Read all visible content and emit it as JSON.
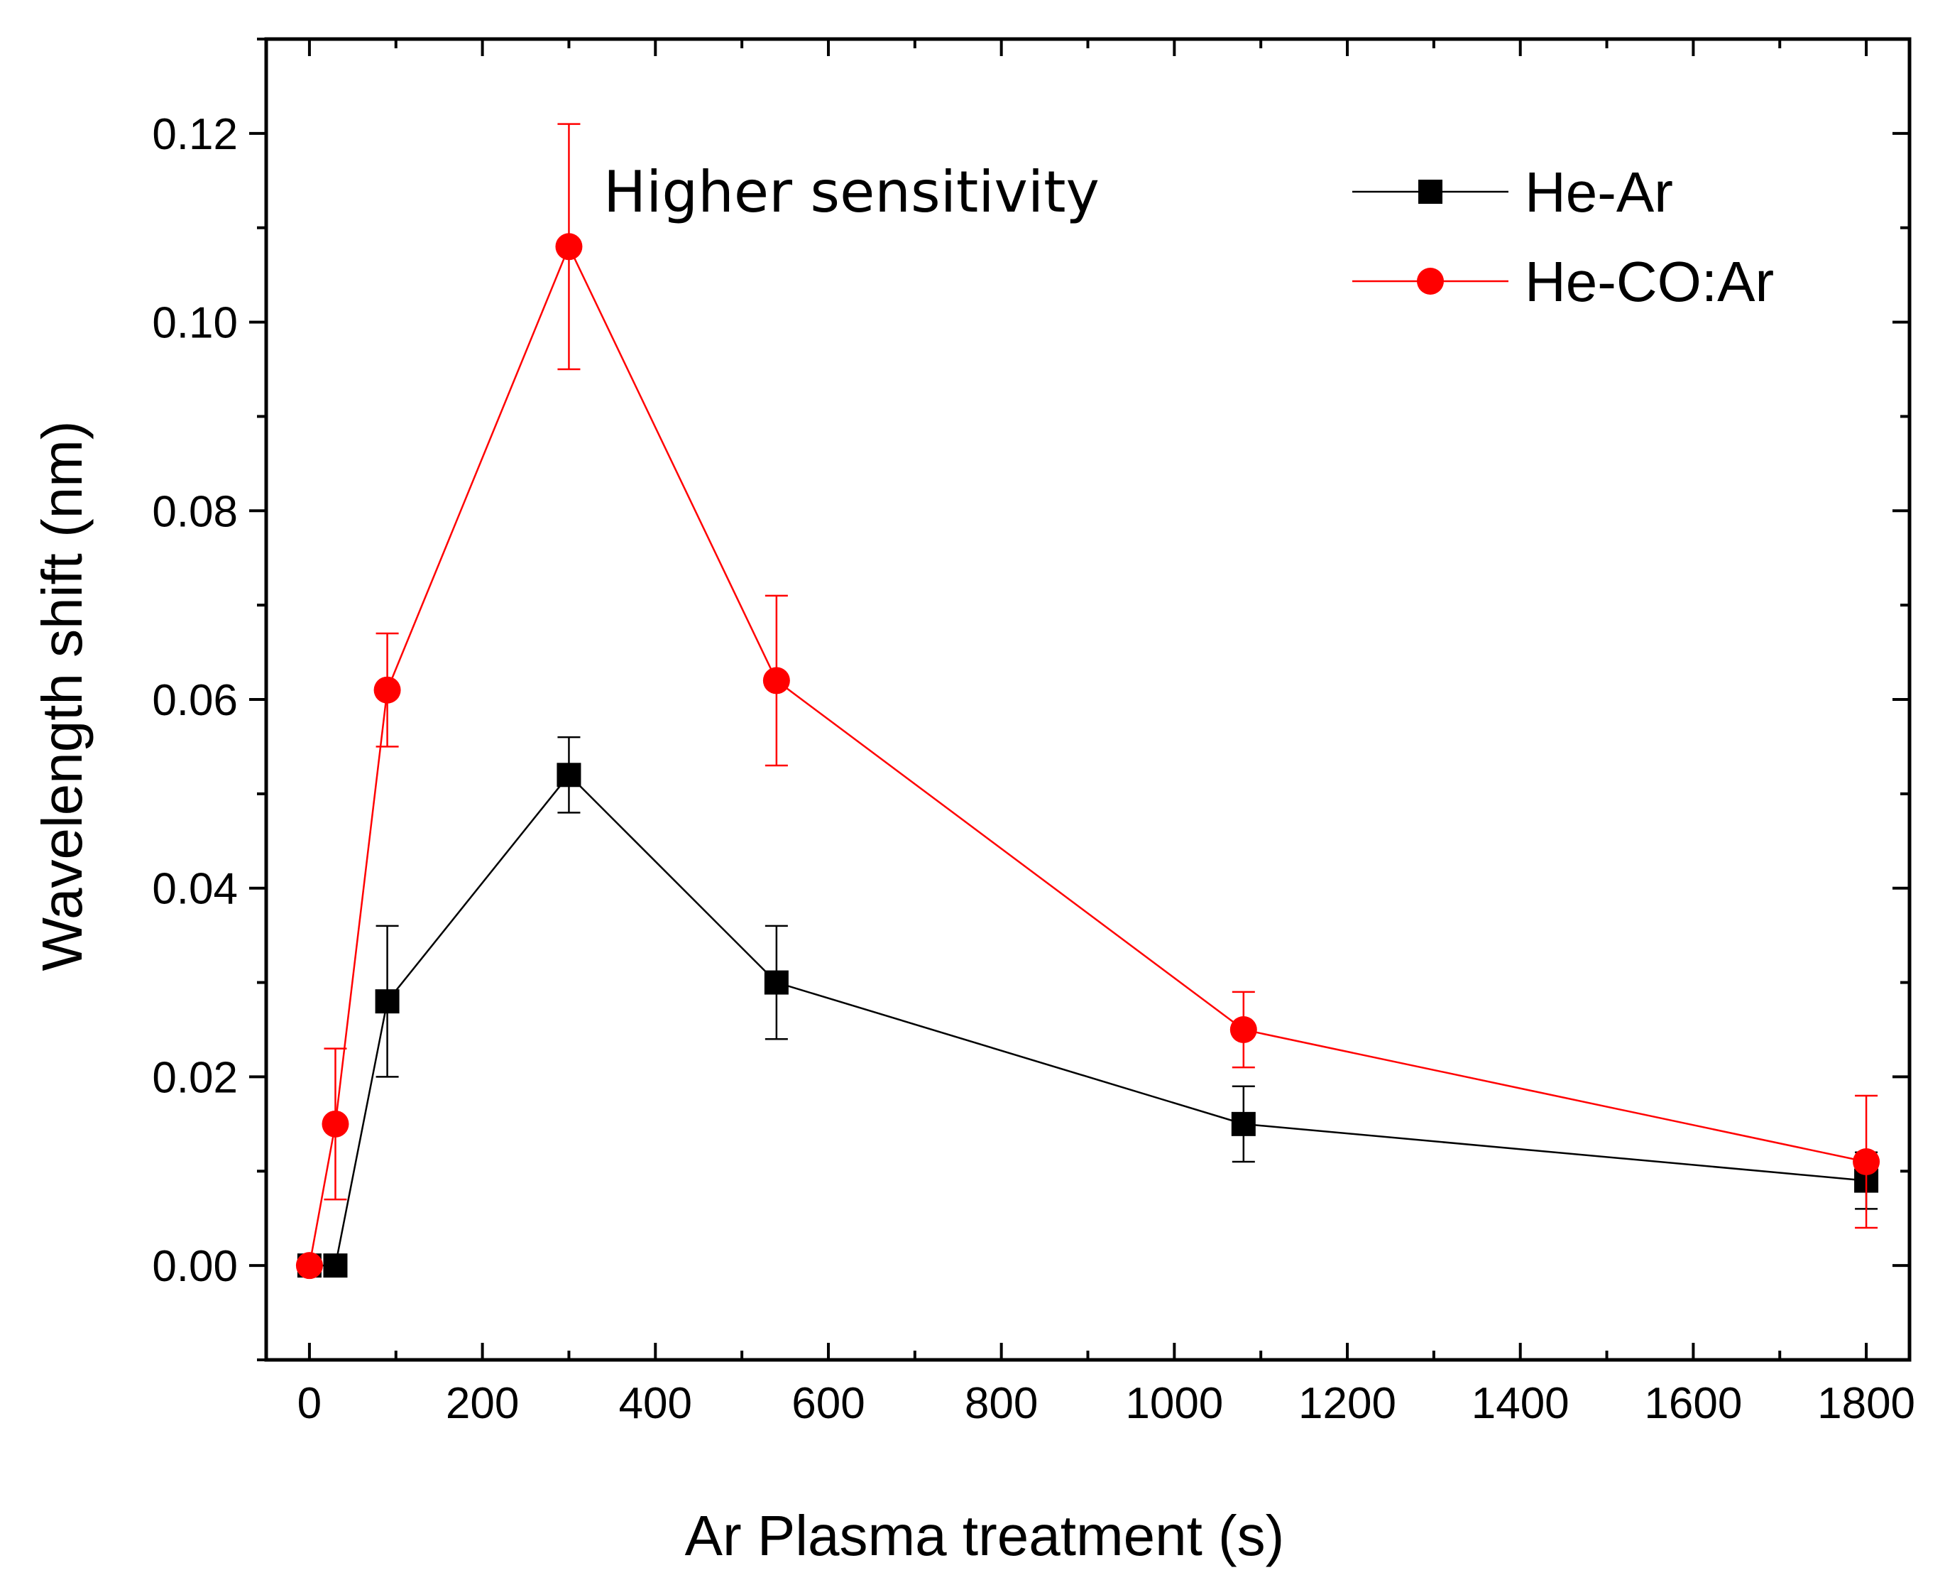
{
  "chart_data": {
    "type": "line",
    "title": "",
    "xlabel": "Ar Plasma treatment (s)",
    "ylabel": "Wavelength shift (nm)",
    "xlim": [
      -50,
      1850
    ],
    "ylim": [
      -0.01,
      0.13
    ],
    "xticks": [
      0,
      200,
      400,
      600,
      800,
      1000,
      1200,
      1400,
      1600,
      1800
    ],
    "xtick_labels": [
      "0",
      "200",
      "400",
      "600",
      "800",
      "1000",
      "1200",
      "1400",
      "1600",
      "1800"
    ],
    "yticks": [
      0.0,
      0.02,
      0.04,
      0.06,
      0.08,
      0.1,
      0.12
    ],
    "ytick_labels": [
      "0.00",
      "0.02",
      "0.04",
      "0.06",
      "0.08",
      "0.10",
      "0.12"
    ],
    "grid": false,
    "legend_position": "top-right",
    "annotation": "Higher sensitivity",
    "series": [
      {
        "name": "He-Ar",
        "color": "#000000",
        "marker": "square",
        "x": [
          0,
          30,
          90,
          300,
          540,
          1080,
          1800
        ],
        "y": [
          0.0,
          0.0,
          0.028,
          0.052,
          0.03,
          0.015,
          0.009
        ],
        "yerr": [
          0.0,
          0.0,
          0.008,
          0.004,
          0.006,
          0.004,
          0.003
        ]
      },
      {
        "name": "He-CO:Ar",
        "color": "#ff0000",
        "marker": "circle",
        "x": [
          0,
          30,
          90,
          300,
          540,
          1080,
          1800
        ],
        "y": [
          0.0,
          0.015,
          0.061,
          0.108,
          0.062,
          0.025,
          0.011
        ],
        "yerr": [
          0.0,
          0.008,
          0.006,
          0.013,
          0.009,
          0.004,
          0.007
        ]
      }
    ]
  }
}
